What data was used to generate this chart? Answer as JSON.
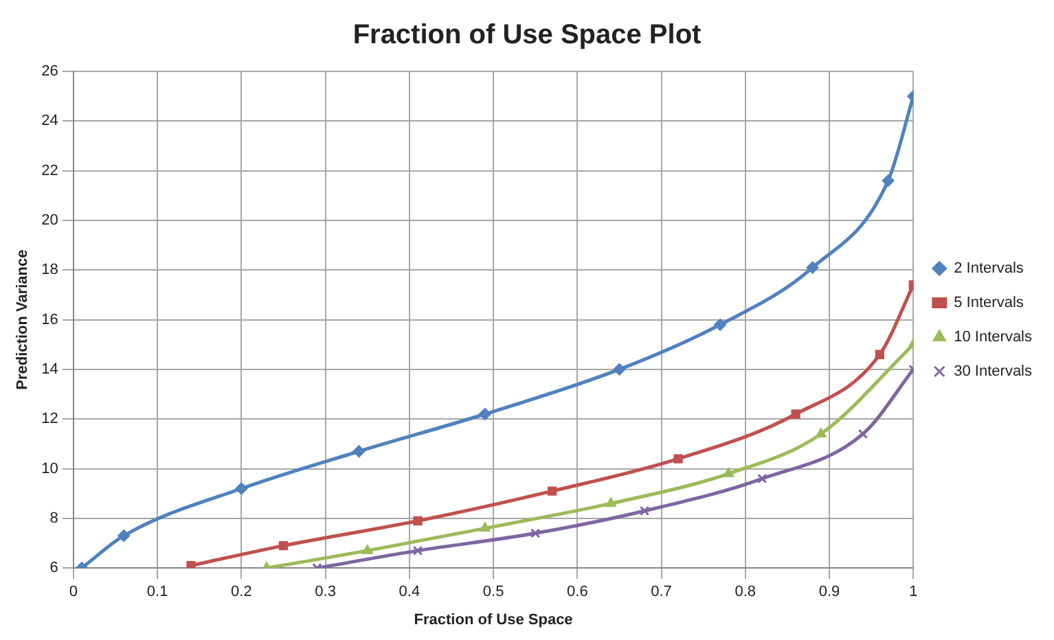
{
  "chart_data": {
    "type": "line",
    "title": "Fraction of Use Space Plot",
    "xlabel": "Fraction of Use Space",
    "ylabel": "Prediction Variance",
    "xlim": [
      0,
      1
    ],
    "xticks": [
      0,
      0.1,
      0.2,
      0.3,
      0.4,
      0.5,
      0.6,
      0.7,
      0.8,
      0.9,
      1
    ],
    "ylim": [
      6,
      26
    ],
    "yticks": [
      6,
      8,
      10,
      12,
      14,
      16,
      18,
      20,
      22,
      24,
      26
    ],
    "grid": true,
    "legend": "right",
    "line_style": "solid",
    "series": [
      {
        "name": "2 Intervals",
        "color": "#4f81bd",
        "marker": "diamond",
        "x": [
          0.01,
          0.06,
          0.2,
          0.34,
          0.49,
          0.65,
          0.77,
          0.88,
          0.97,
          1
        ],
        "values": [
          6,
          7.3,
          9.2,
          10.7,
          12.2,
          14,
          15.8,
          18.1,
          21.6,
          25
        ]
      },
      {
        "name": "5 Intervals",
        "color": "#c0504d",
        "marker": "square",
        "x": [
          0.14,
          0.25,
          0.41,
          0.57,
          0.72,
          0.86,
          0.96,
          1
        ],
        "values": [
          6.1,
          6.9,
          7.9,
          9.1,
          10.4,
          12.2,
          14.6,
          17.4
        ]
      },
      {
        "name": "10 Intervals",
        "color": "#9bbb59",
        "marker": "triangle",
        "x": [
          0.23,
          0.35,
          0.49,
          0.64,
          0.78,
          0.89,
          1
        ],
        "values": [
          6,
          6.7,
          7.6,
          8.6,
          9.8,
          11.4,
          15
        ]
      },
      {
        "name": "30 Intervals",
        "color": "#8064a2",
        "marker": "cross",
        "x": [
          0.29,
          0.41,
          0.55,
          0.68,
          0.82,
          0.94,
          1
        ],
        "values": [
          6,
          6.7,
          7.4,
          8.3,
          9.6,
          11.4,
          14
        ]
      }
    ]
  }
}
